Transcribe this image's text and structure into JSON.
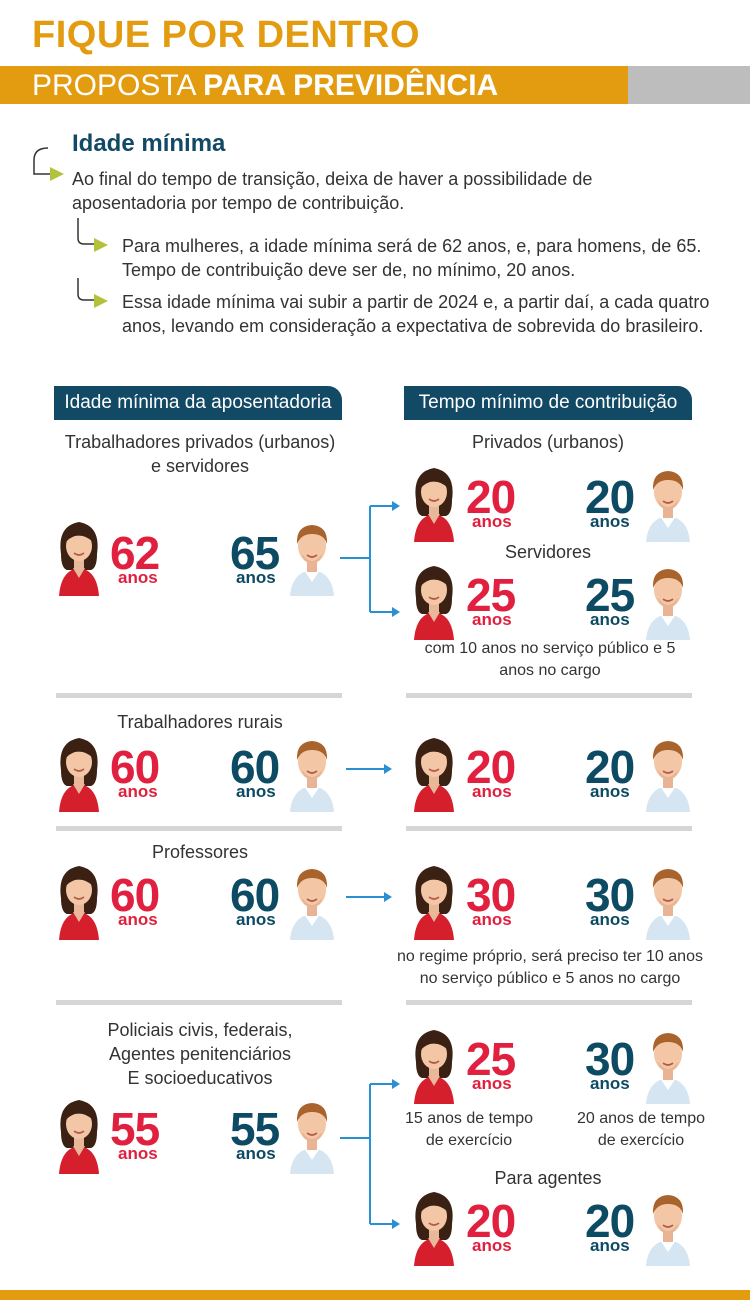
{
  "header": {
    "title": "FIQUE POR DENTRO",
    "subtitle_regular": "PROPOSTA ",
    "subtitle_bold": "PARA PREVIDÊNCIA"
  },
  "intro": {
    "heading": "Idade mínima",
    "paragraph": "Ao final do tempo de transição, deixa de haver a possibilidade de aposentadoria por tempo de contribuição.",
    "point_1": "Para mulheres, a idade mínima será de 62 anos, e, para homens, de 65. Tempo de contribuição deve ser de, no mínimo, 20 anos.",
    "point_2": "Essa idade mínima vai subir a partir de 2024 e, a partir daí, a cada quatro anos, levando em consideração a expectativa de sobrevida do brasileiro."
  },
  "columns": {
    "left_header": "Idade mínima da aposentadoria",
    "right_header": "Tempo mínimo de contribuição"
  },
  "unit": "anos",
  "groups": {
    "privados": {
      "label": "Trabalhadores privados (urbanos) e servidores",
      "age_woman": "62",
      "age_man": "65",
      "sub1_label": "Privados (urbanos)",
      "sub1_woman": "20",
      "sub1_man": "20",
      "sub2_label": "Servidores",
      "sub2_woman": "25",
      "sub2_man": "25",
      "note": "com 10 anos no serviço público e 5 anos no cargo"
    },
    "rurais": {
      "label": "Trabalhadores rurais",
      "age_woman": "60",
      "age_man": "60",
      "contrib_woman": "20",
      "contrib_man": "20"
    },
    "professores": {
      "label": "Professores",
      "age_woman": "60",
      "age_man": "60",
      "contrib_woman": "30",
      "contrib_man": "30",
      "note": "no regime próprio, será preciso ter 10 anos no serviço público e 5 anos no cargo"
    },
    "policiais": {
      "label_line1": "Policiais civis, federais,",
      "label_line2": "Agentes penitenciários",
      "label_line3": "E socioeducativos",
      "age_woman": "55",
      "age_man": "55",
      "sub1_woman": "25",
      "sub1_man": "30",
      "sub1_note_woman": "15 anos de tempo de exercício",
      "sub1_note_man": "20 anos de tempo de exercício",
      "sub2_label": "Para agentes",
      "sub2_woman": "20",
      "sub2_man": "20"
    }
  },
  "colors": {
    "accent": "#e39b10",
    "navy": "#124965",
    "woman_number": "#e0203e",
    "man_number": "#0d4a63",
    "arrow_blue": "#2a8fd3",
    "bullet": "#b4c23b"
  }
}
